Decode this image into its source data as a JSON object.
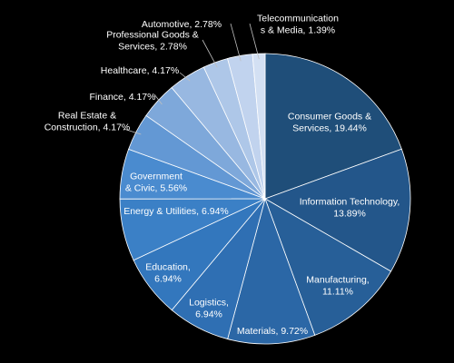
{
  "chart_data": {
    "type": "pie",
    "title": "",
    "slices": [
      {
        "label": "Consumer Goods & Services",
        "value": 19.44,
        "text": "19.44%",
        "color": "#1f4e79"
      },
      {
        "label": "Information Technology",
        "value": 13.89,
        "text": "13.89%",
        "color": "#23568a"
      },
      {
        "label": "Manufacturing",
        "value": 11.11,
        "text": "11.11%",
        "color": "#275f98"
      },
      {
        "label": "Materials",
        "value": 9.72,
        "text": "9.72%",
        "color": "#2b67a6"
      },
      {
        "label": "Logistics",
        "value": 6.94,
        "text": "6.94%",
        "color": "#2f6fb3"
      },
      {
        "label": "Education",
        "value": 6.94,
        "text": "6.94%",
        "color": "#3377bd"
      },
      {
        "label": "Energy & Utilities",
        "value": 6.94,
        "text": "6.94%",
        "color": "#3b80c6"
      },
      {
        "label": "Government & Civic",
        "value": 5.56,
        "text": "5.56%",
        "color": "#4a8bcf"
      },
      {
        "label": "Real Estate & Construction",
        "value": 4.17,
        "text": "4.17%",
        "color": "#6398d4"
      },
      {
        "label": "Finance",
        "value": 4.17,
        "text": "4.17%",
        "color": "#7ea8da"
      },
      {
        "label": "Healthcare",
        "value": 4.17,
        "text": "4.17%",
        "color": "#98b8e1"
      },
      {
        "label": "Professional Goods & Services",
        "value": 2.78,
        "text": "2.78%",
        "color": "#aec7e8"
      },
      {
        "label": "Automotive",
        "value": 2.78,
        "text": "2.78%",
        "color": "#c1d3ee"
      },
      {
        "label": "Telecommunications & Media",
        "value": 1.39,
        "text": "1.39%",
        "color": "#d3e0f3"
      }
    ]
  }
}
